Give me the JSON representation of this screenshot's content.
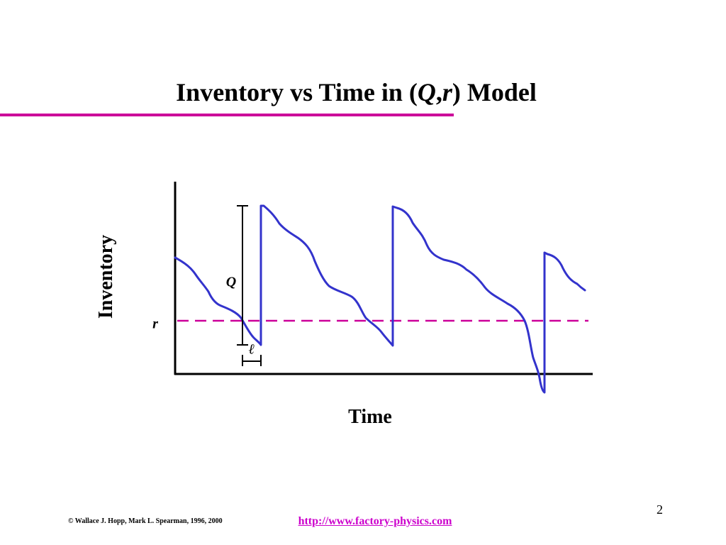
{
  "slide": {
    "title_prefix": "Inventory vs Time in (",
    "title_q": "Q",
    "title_comma": ",",
    "title_r": "r",
    "title_suffix": ") Model",
    "accent_color": "#cc0099",
    "page_number": "2"
  },
  "diagram": {
    "ylabel": "Inventory",
    "xlabel": "Time",
    "reorder_point_label": "r",
    "order_quantity_label": "Q",
    "lead_time_label": "ℓ",
    "curve_color": "#3333cc",
    "reorder_line_color": "#cc0099",
    "reorder_line_style": "dashed"
  },
  "footer": {
    "copyright": "© Wallace J. Hopp, Mark L. Spearman, 1996, 2000",
    "link_text": "http://www.factory-physics.com",
    "link_color": "#cc00cc"
  }
}
